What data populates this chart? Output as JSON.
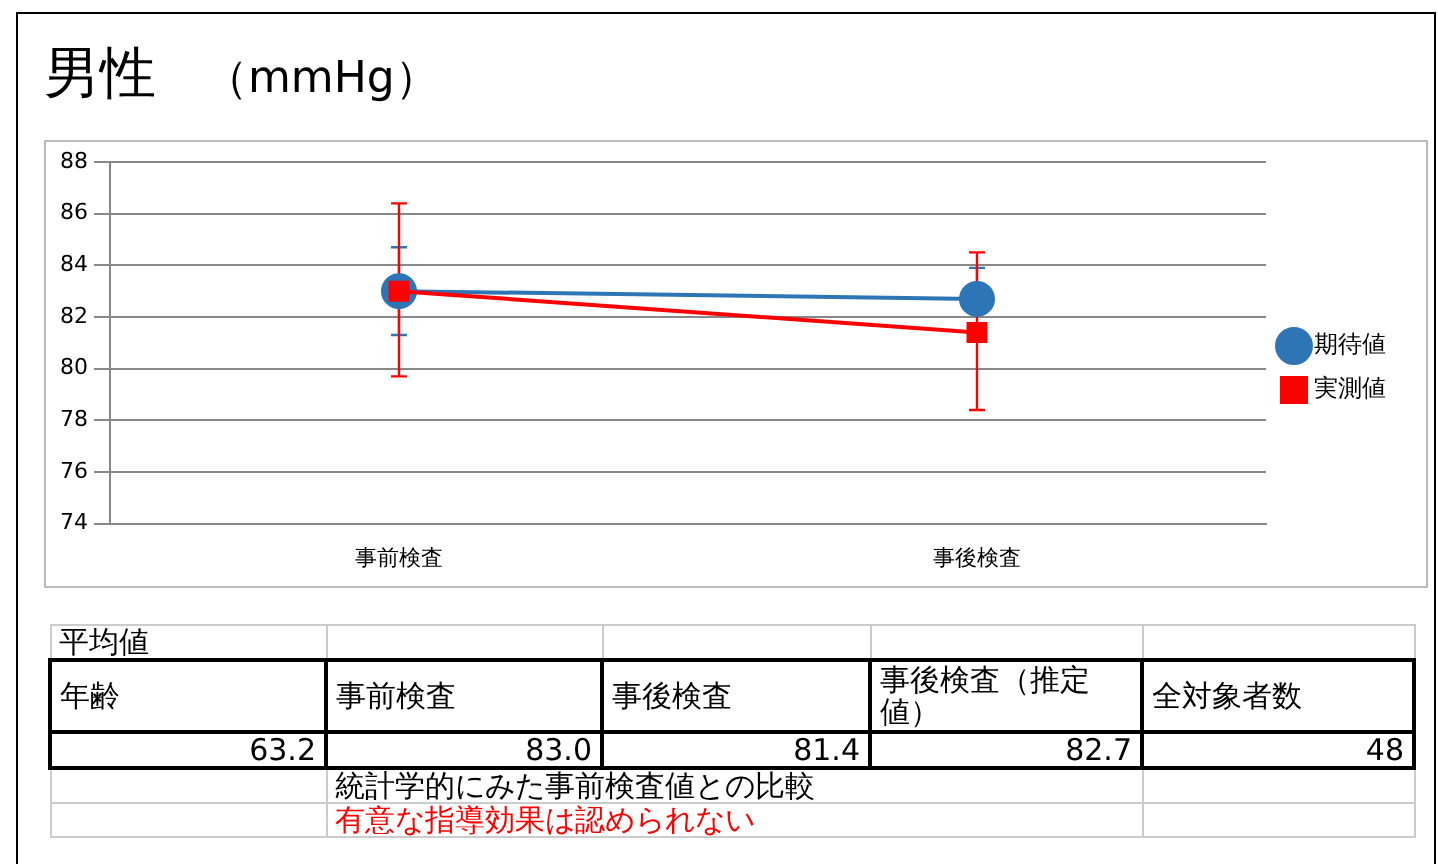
{
  "chart_data": {
    "type": "line",
    "title": "男性",
    "subtitle": "（mmHg）",
    "categories": [
      "事前検査",
      "事後検査"
    ],
    "series": [
      {
        "name": "期待値",
        "color": "#2e75b6",
        "marker": "circle",
        "values": [
          83.0,
          82.7
        ],
        "errors": [
          [
            81.3,
            84.7
          ],
          [
            82.7,
            83.9
          ]
        ]
      },
      {
        "name": "実測値",
        "color": "#ff0000",
        "marker": "square",
        "values": [
          83.0,
          81.4
        ],
        "errors": [
          [
            79.7,
            86.4
          ],
          [
            78.4,
            84.5
          ]
        ]
      }
    ],
    "ylim": [
      74,
      88
    ],
    "yticks": [
      74,
      76,
      78,
      80,
      82,
      84,
      86,
      88
    ],
    "grid": "y",
    "legend": "right",
    "annotations": [
      "平均値",
      "年齢",
      "事前検査",
      "事後検査",
      "事後検査（推定値）",
      "全対象者数",
      "63.2",
      "83.0",
      "81.4",
      "82.7",
      "48",
      "統計学的にみた事前検査値との比較",
      "有意な指導効果は認められない"
    ]
  }
}
